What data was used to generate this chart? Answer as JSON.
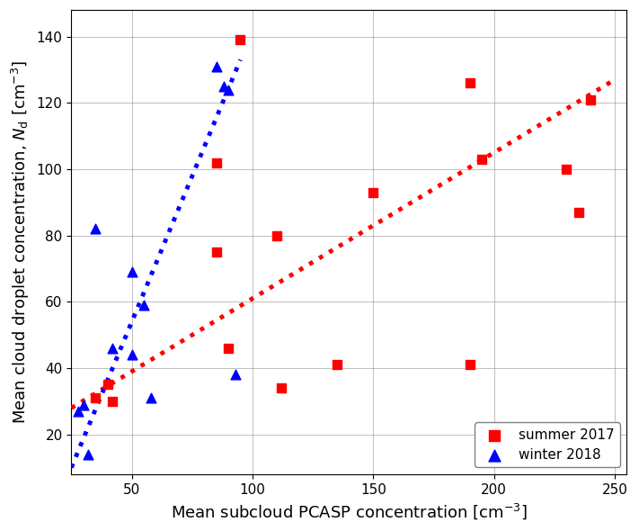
{
  "summer_x": [
    35,
    40,
    42,
    85,
    85,
    90,
    95,
    110,
    112,
    135,
    150,
    190,
    190,
    195,
    230,
    235,
    240
  ],
  "summer_y": [
    31,
    35,
    30,
    102,
    75,
    46,
    139,
    80,
    34,
    41,
    93,
    126,
    41,
    103,
    100,
    87,
    121
  ],
  "winter_x": [
    28,
    30,
    32,
    35,
    42,
    50,
    50,
    55,
    58,
    85,
    88,
    90,
    93
  ],
  "winter_y": [
    27,
    29,
    14,
    82,
    46,
    44,
    69,
    59,
    31,
    131,
    125,
    124,
    38
  ],
  "summer_fit_x": [
    25,
    250
  ],
  "summer_fit_y": [
    28,
    127
  ],
  "winter_fit_x": [
    25,
    95
  ],
  "winter_fit_y": [
    10,
    133
  ],
  "xlabel": "Mean subcloud PCASP concentration [cm$^{-3}$]",
  "ylabel": "Mean cloud droplet concentration, $N_{\\mathrm{d}}$ [cm$^{-3}$]",
  "xlim": [
    25,
    255
  ],
  "ylim": [
    8,
    148
  ],
  "xticks": [
    50,
    100,
    150,
    200,
    250
  ],
  "yticks": [
    20,
    40,
    60,
    80,
    100,
    120,
    140
  ],
  "summer_color": "#ff0000",
  "winter_color": "#0000ff",
  "legend_labels": [
    "summer 2017",
    "winter 2018"
  ],
  "figsize": [
    7.11,
    5.9
  ],
  "dpi": 100
}
